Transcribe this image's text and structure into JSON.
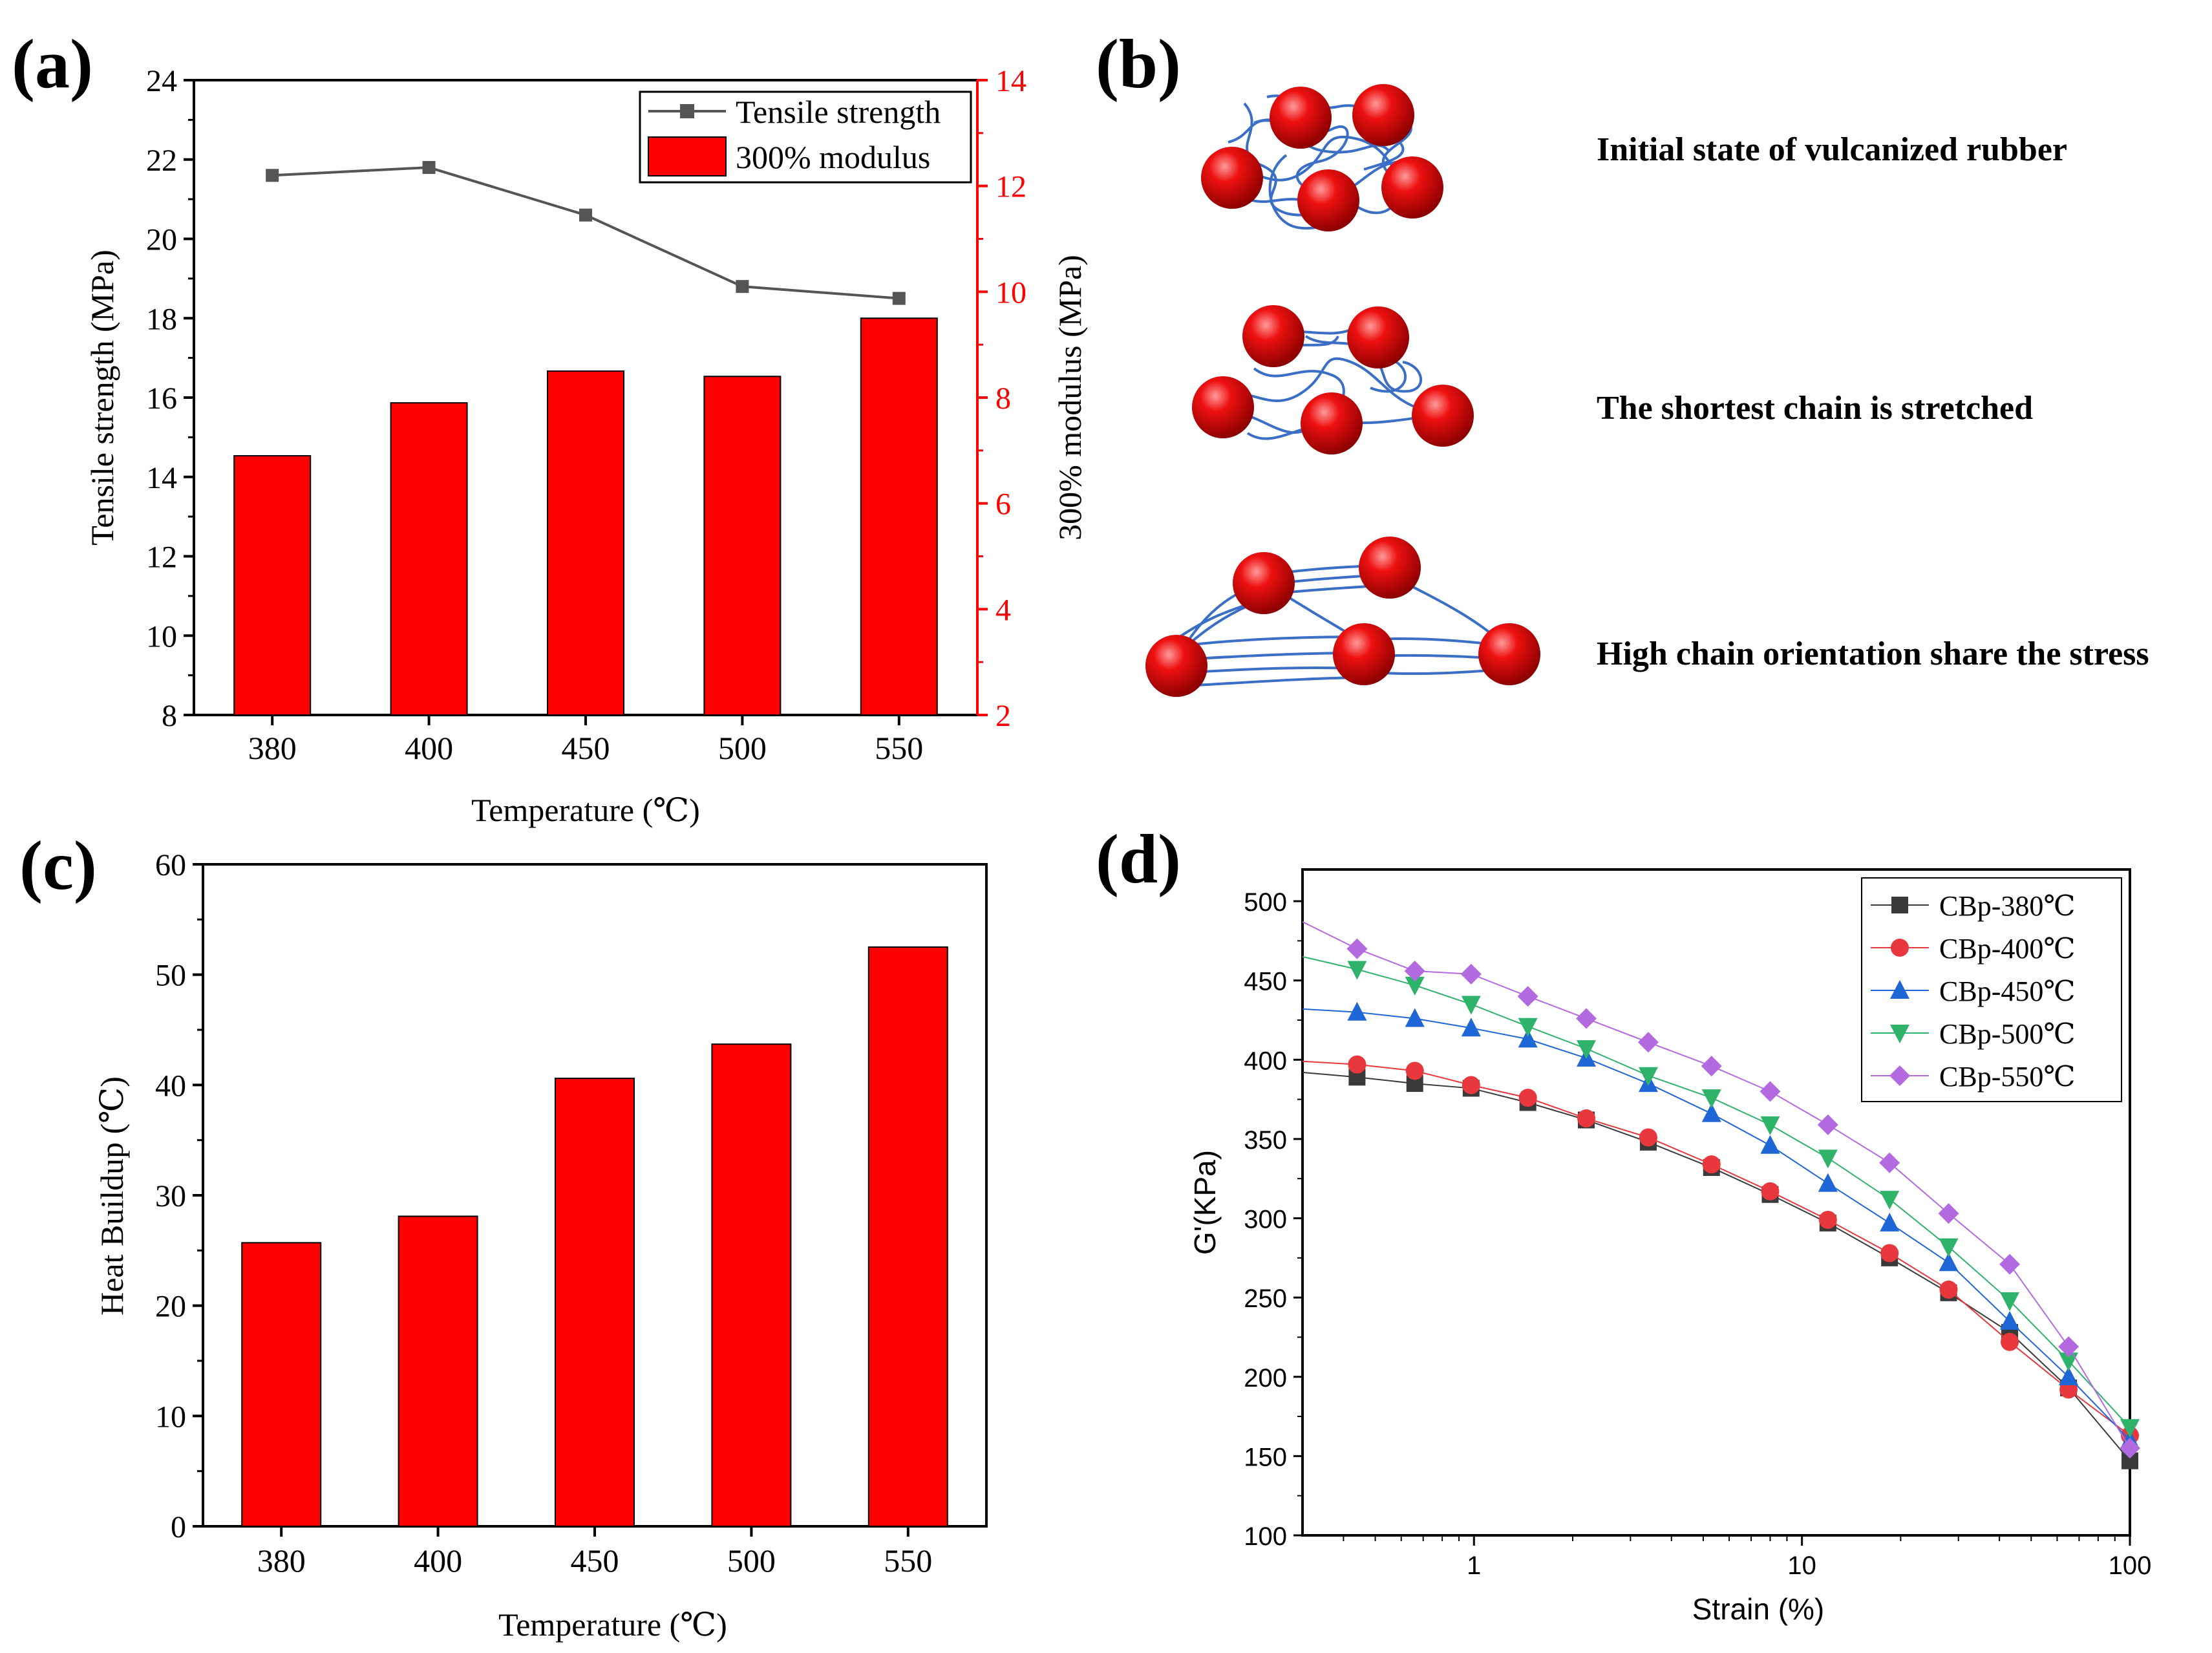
{
  "colors": {
    "bar_red": "#ff0000",
    "axis_black": "#000000",
    "line_gray": "#555555",
    "chain_blue": "#3b6fc6",
    "right_axis_red": "#ff0000"
  },
  "panel_a": {
    "letter": "(a)",
    "chart_ref": "chart_data.0"
  },
  "panel_b": {
    "letter": "(b)",
    "stages": [
      {
        "label": "Initial state of vulcanized rubber"
      },
      {
        "label": "The shortest chain is stretched"
      },
      {
        "label": "High chain orientation share the stress"
      }
    ]
  },
  "panel_c": {
    "letter": "(c)"
  },
  "panel_d": {
    "letter": "(d)"
  },
  "chart_data": [
    {
      "type": "bar+line",
      "panel": "(a)",
      "categories": [
        "380",
        "400",
        "450",
        "500",
        "550"
      ],
      "xlabel": "Temperature (℃)",
      "ylabel_left": "Tensile strength (MPa)",
      "ylabel_right": "300% modulus (MPa)",
      "ylim_left": [
        8,
        24
      ],
      "yticks_left": [
        "8",
        "10",
        "12",
        "14",
        "16",
        "18",
        "20",
        "22",
        "24"
      ],
      "ylim_right": [
        2,
        14
      ],
      "yticks_right": [
        "2",
        "4",
        "6",
        "8",
        "10",
        "12",
        "14"
      ],
      "legend": [
        "Tensile strength",
        "300% modulus"
      ],
      "legend_position": "top-right",
      "series": [
        {
          "name": "Tensile strength",
          "axis": "left",
          "kind": "line",
          "values": [
            21.6,
            21.8,
            20.6,
            18.8,
            18.5
          ]
        },
        {
          "name": "300% modulus",
          "axis": "right",
          "kind": "bar",
          "values": [
            6.9,
            7.9,
            8.5,
            8.4,
            9.5
          ]
        }
      ]
    },
    {
      "type": "bar",
      "panel": "(c)",
      "categories": [
        "380",
        "400",
        "450",
        "500",
        "550"
      ],
      "values": [
        25.7,
        28.1,
        40.6,
        43.7,
        52.5
      ],
      "xlabel": "Temperature (℃)",
      "ylabel": "Heat Buildup (℃)",
      "ylim": [
        0,
        60
      ],
      "yticks": [
        "0",
        "10",
        "20",
        "30",
        "40",
        "50",
        "60"
      ]
    },
    {
      "type": "line",
      "panel": "(d)",
      "xscale": "log",
      "xlim": [
        0.3,
        100
      ],
      "xticks": [
        "1",
        "10",
        "100"
      ],
      "xtick_values": [
        1,
        10,
        100
      ],
      "ylim": [
        100,
        520
      ],
      "yticks": [
        "100",
        "150",
        "200",
        "250",
        "300",
        "350",
        "400",
        "450",
        "500"
      ],
      "xlabel": "Strain (%)",
      "ylabel": "G'(KPa)",
      "legend_position": "top-right",
      "x": [
        0.3,
        0.44,
        0.66,
        0.98,
        1.46,
        2.2,
        3.4,
        5.3,
        8.0,
        12.0,
        18.5,
        28.0,
        43.0,
        65.0,
        100.0
      ],
      "series": [
        {
          "name": "CBp-380℃",
          "marker": "square",
          "color": "#3a3a3a",
          "values": [
            392,
            389,
            385,
            382,
            373,
            362,
            348,
            332,
            315,
            297,
            275,
            253,
            228,
            193,
            147
          ]
        },
        {
          "name": "CBp-400℃",
          "marker": "circle",
          "color": "#e8383d",
          "values": [
            399,
            397,
            393,
            384,
            376,
            363,
            351,
            334,
            317,
            299,
            278,
            255,
            222,
            192,
            163
          ]
        },
        {
          "name": "CBp-450℃",
          "marker": "triangle-up",
          "color": "#1f66d6",
          "values": [
            432,
            430,
            426,
            420,
            413,
            401,
            385,
            366,
            346,
            322,
            297,
            272,
            235,
            200,
            160
          ]
        },
        {
          "name": "CBp-500℃",
          "marker": "triangle-down",
          "color": "#2fb36a",
          "values": [
            465,
            457,
            447,
            435,
            421,
            407,
            390,
            376,
            359,
            338,
            312,
            282,
            248,
            210,
            168
          ]
        },
        {
          "name": "CBp-550℃",
          "marker": "diamond",
          "color": "#b36ae0",
          "values": [
            487,
            470,
            456,
            454,
            440,
            426,
            411,
            396,
            380,
            359,
            335,
            303,
            271,
            219,
            155
          ]
        }
      ]
    }
  ]
}
